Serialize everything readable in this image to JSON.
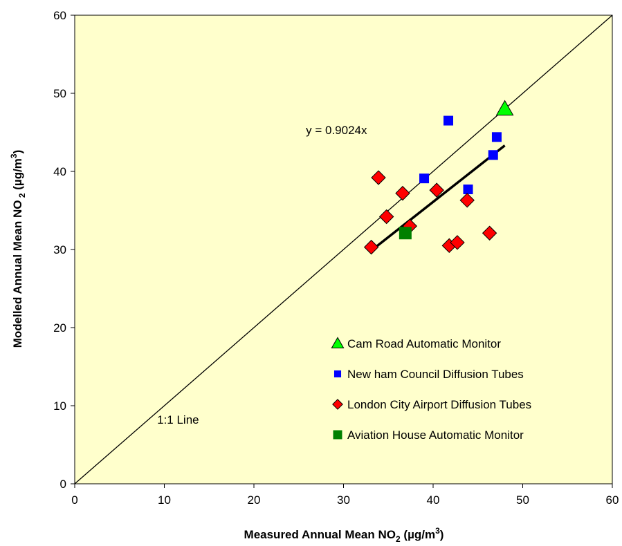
{
  "chart_data": {
    "type": "scatter",
    "title": "",
    "xlabel": {
      "main": "Measured Annual Mean NO",
      "sub": "2",
      "units": " (µg/m",
      "sup": "3",
      "close": ")"
    },
    "ylabel": {
      "main": "Modelled Annual Mean NO",
      "sub": " 2",
      "units": " (µg/m",
      "sup": "3",
      "close": ")"
    },
    "xlim": [
      0,
      60
    ],
    "ylim": [
      0,
      60
    ],
    "xticks": [
      0,
      10,
      20,
      30,
      40,
      50,
      60
    ],
    "yticks": [
      0,
      10,
      20,
      30,
      40,
      50,
      60
    ],
    "grid": false,
    "plot_background": "#ffffcc",
    "legend_position": "inside-lower-right",
    "series": [
      {
        "name": "Cam Road Automatic Monitor",
        "marker": "triangle",
        "color": "#00ff00",
        "points": [
          [
            48.0,
            48.0
          ]
        ]
      },
      {
        "name": "New ham Council Diffusion Tubes",
        "marker": "square",
        "color": "#0000ff",
        "points": [
          [
            41.7,
            46.5
          ],
          [
            47.1,
            44.4
          ],
          [
            46.7,
            42.1
          ],
          [
            39.0,
            39.1
          ],
          [
            43.9,
            37.7
          ]
        ]
      },
      {
        "name": "London City Airport Diffusion Tubes",
        "marker": "diamond",
        "color": "#ff0000",
        "points": [
          [
            33.9,
            39.2
          ],
          [
            36.6,
            37.2
          ],
          [
            40.4,
            37.6
          ],
          [
            43.8,
            36.3
          ],
          [
            34.8,
            34.2
          ],
          [
            37.4,
            33.0
          ],
          [
            33.1,
            30.3
          ],
          [
            41.8,
            30.5
          ],
          [
            42.7,
            30.9
          ],
          [
            46.3,
            32.1
          ]
        ]
      },
      {
        "name": "Aviation House Automatic Monitor",
        "marker": "square",
        "color": "#008000",
        "points": [
          [
            36.9,
            32.1
          ]
        ]
      }
    ],
    "lines": {
      "one_to_one": {
        "label": "1:1 Line",
        "from": [
          0,
          0
        ],
        "to": [
          60,
          60
        ]
      },
      "regression": {
        "label": "y = 0.9024x",
        "slope": 0.9024,
        "x_range": [
          33.1,
          48.0
        ]
      }
    }
  }
}
